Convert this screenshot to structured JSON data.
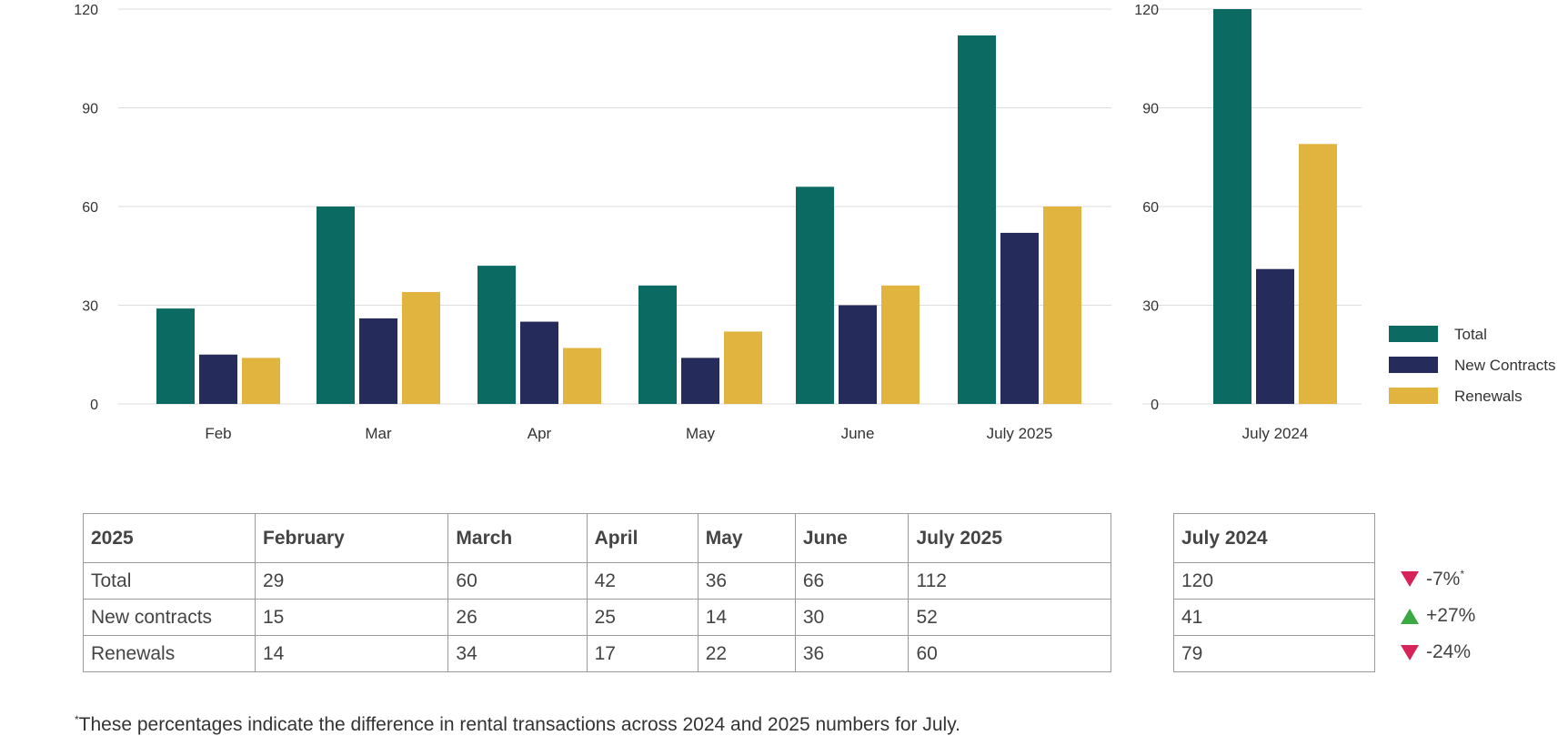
{
  "chart_data": [
    {
      "type": "bar",
      "categories": [
        "Feb",
        "Mar",
        "Apr",
        "May",
        "June",
        "July 2025"
      ],
      "series": [
        {
          "name": "Total",
          "values": [
            29,
            60,
            42,
            36,
            66,
            112
          ]
        },
        {
          "name": "New Contracts",
          "values": [
            15,
            26,
            25,
            14,
            30,
            52
          ]
        },
        {
          "name": "Renewals",
          "values": [
            14,
            34,
            17,
            22,
            36,
            60
          ]
        }
      ],
      "ylim": [
        0,
        120
      ],
      "yticks": [
        0,
        30,
        60,
        90,
        120
      ],
      "grid": true
    },
    {
      "type": "bar",
      "categories": [
        "July 2024"
      ],
      "series": [
        {
          "name": "Total",
          "values": [
            120
          ]
        },
        {
          "name": "New Contracts",
          "values": [
            41
          ]
        },
        {
          "name": "Renewals",
          "values": [
            79
          ]
        }
      ],
      "ylim": [
        0,
        120
      ],
      "yticks": [
        0,
        30,
        60,
        90,
        120
      ],
      "grid": true,
      "legend": "right"
    }
  ],
  "colors": {
    "total": "#0b6b63",
    "new_contracts": "#252b5b",
    "renewals": "#e1b43f",
    "grid": "#dddddd"
  },
  "table": {
    "headers": [
      "2025",
      "February",
      "March",
      "April",
      "May",
      "June",
      "July 2025"
    ],
    "rows": [
      [
        "Total",
        "29",
        "60",
        "42",
        "36",
        "66",
        "112"
      ],
      [
        "New contracts",
        "15",
        "26",
        "25",
        "14",
        "30",
        "52"
      ],
      [
        "Renewals",
        "14",
        "34",
        "17",
        "22",
        "36",
        "60"
      ]
    ]
  },
  "side_table": {
    "header": "July 2024",
    "values": [
      "120",
      "41",
      "79"
    ]
  },
  "changes": [
    {
      "direction": "down",
      "icon": "down-triangle-icon",
      "text": "-7%",
      "mark": "*"
    },
    {
      "direction": "up",
      "icon": "up-triangle-icon",
      "text": "+27%",
      "mark": ""
    },
    {
      "direction": "down",
      "icon": "down-triangle-icon",
      "text": "-24%",
      "mark": ""
    }
  ],
  "footnote": {
    "mark": "*",
    "text": "These percentages indicate the difference in rental transactions across 2024 and 2025 numbers for July."
  }
}
